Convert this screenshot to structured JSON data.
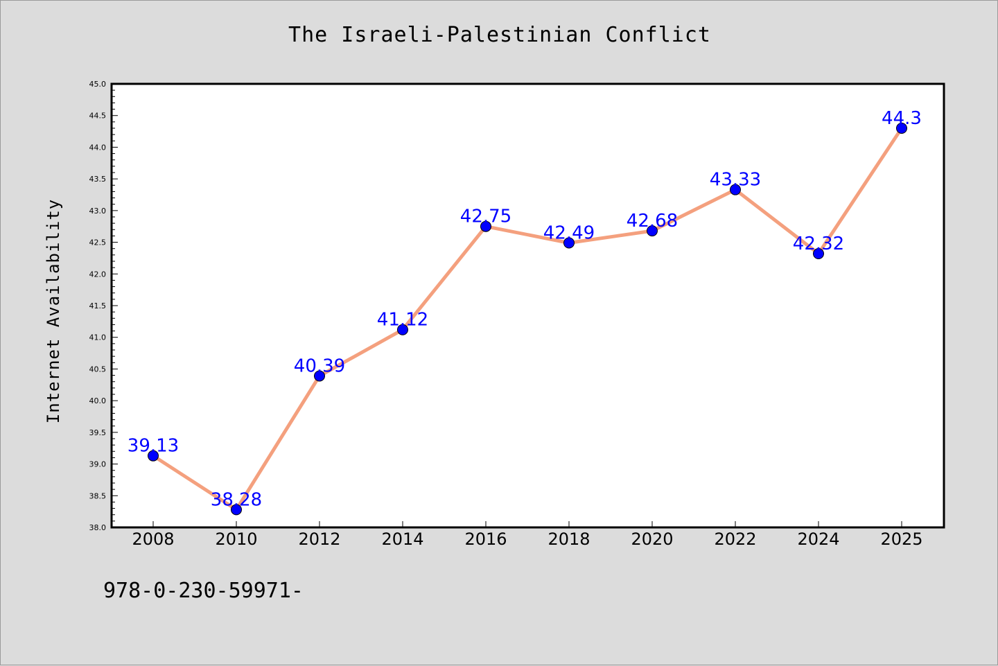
{
  "chart_data": {
    "type": "line",
    "title": "The Israeli-Palestinian Conflict",
    "xlabel": "",
    "ylabel": "Internet Availability",
    "x": [
      "2008",
      "2010",
      "2012",
      "2014",
      "2016",
      "2018",
      "2020",
      "2022",
      "2024",
      "2025"
    ],
    "series": [
      {
        "values": [
          39.13,
          38.28,
          40.39,
          41.12,
          42.75,
          42.49,
          42.68,
          43.33,
          42.32,
          44.3
        ],
        "data_labels": [
          "39.13",
          "38.28",
          "40.39",
          "41.12",
          "42.75",
          "42.49",
          "42.68",
          "43.33",
          "42.32",
          "44.3"
        ],
        "line_color": "#f4a07e",
        "marker_color": "#0000ff"
      }
    ],
    "ylim": [
      38.0,
      45.0
    ],
    "yticks": [
      "38.0",
      "38.5",
      "39.0",
      "39.5",
      "40.0",
      "40.5",
      "41.0",
      "41.5",
      "42.0",
      "42.5",
      "43.0",
      "43.5",
      "44.0",
      "44.5",
      "45.0"
    ],
    "grid": false,
    "legend": "none"
  },
  "footer": {
    "text": "978-0-230-59971-"
  },
  "colors": {
    "background": "#dcdcdc",
    "plot_background": "#ffffff",
    "label_color": "#0000ff"
  }
}
